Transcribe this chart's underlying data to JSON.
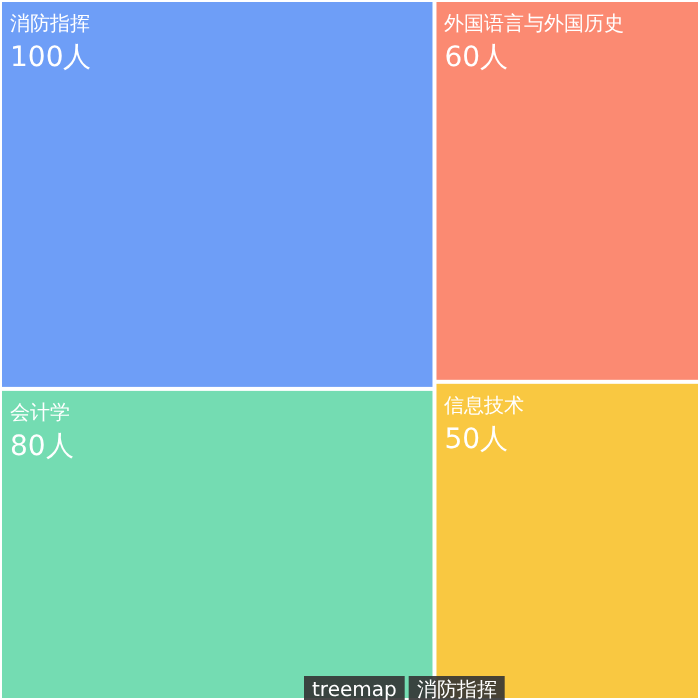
{
  "chart_data": {
    "type": "other",
    "categories": [
      "消防指挥",
      "会计学",
      "外国语言与外国历史",
      "信息技术"
    ],
    "values": [
      100,
      80,
      60,
      50
    ],
    "value_labels": [
      "100人",
      "80人",
      "60人",
      "50人"
    ],
    "colors": [
      "#6e9ef7",
      "#74dcb2",
      "#fb8a72",
      "#f9c841"
    ],
    "annotations": [
      "treemap",
      "消防指挥"
    ]
  }
}
